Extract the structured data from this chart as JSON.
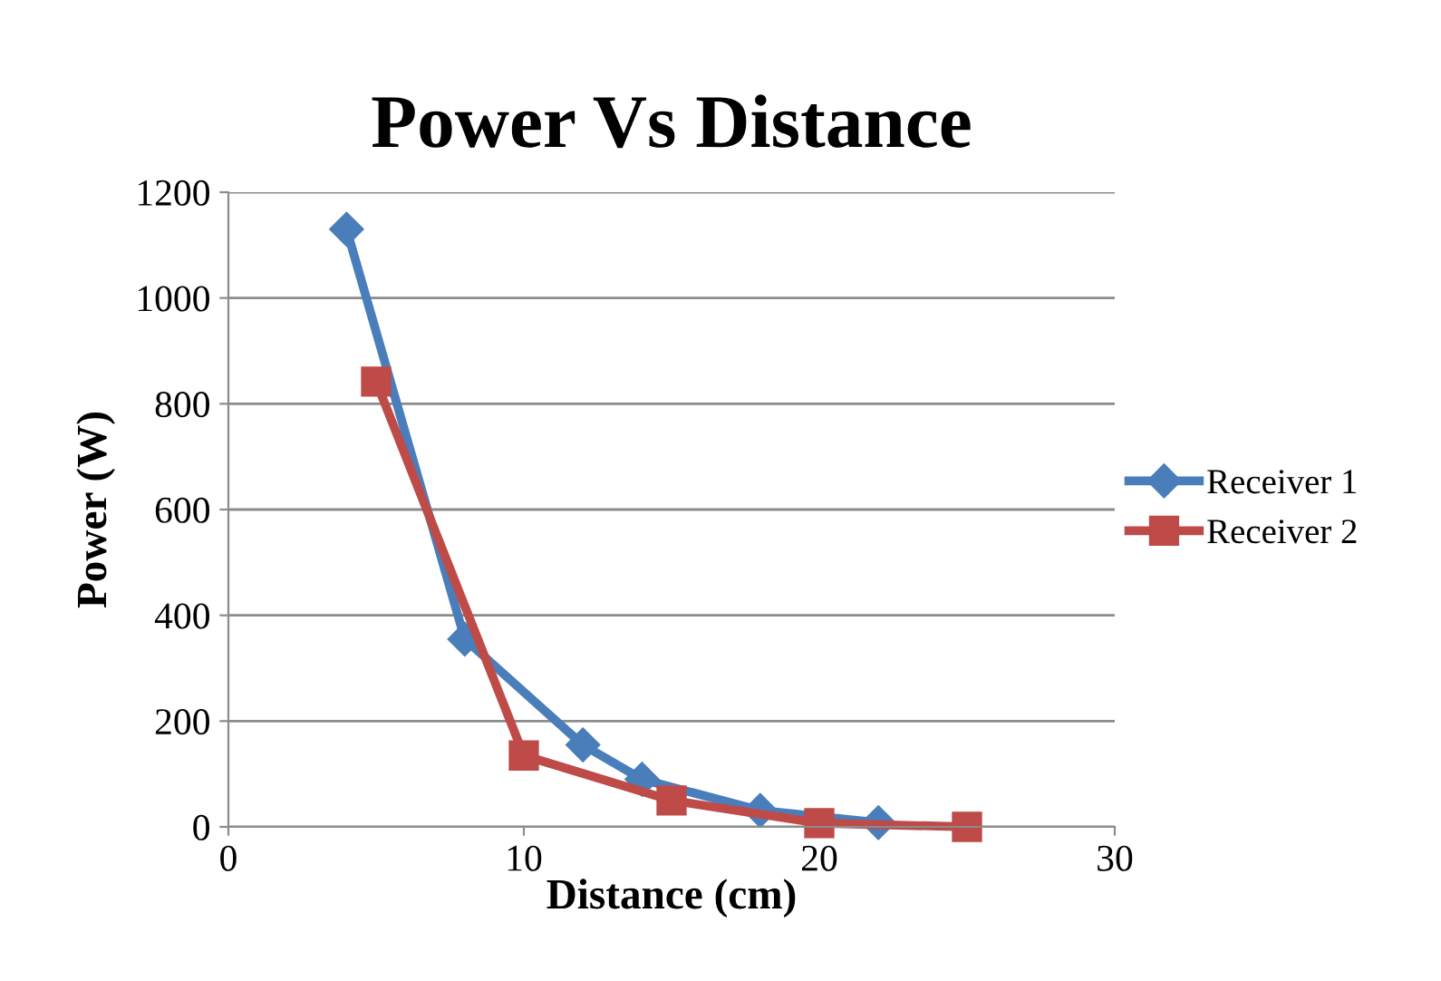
{
  "chart_data": {
    "type": "line",
    "title": "Power Vs Distance",
    "xlabel": "Distance (cm)",
    "ylabel": "Power (W)",
    "xlim": [
      0,
      30
    ],
    "xticks": [
      0,
      10,
      20,
      30
    ],
    "ylim": [
      0,
      1200
    ],
    "yticks": [
      0,
      200,
      400,
      600,
      800,
      1000,
      1200
    ],
    "grid": "y",
    "legend": "right",
    "line_style": "solid",
    "series": [
      {
        "name": "Receiver 1",
        "color": "#4a7ebb",
        "marker": "diamond",
        "x": [
          4,
          8,
          12,
          14,
          18,
          22
        ],
        "values": [
          1130,
          355,
          155,
          90,
          31,
          8
        ]
      },
      {
        "name": "Receiver 2",
        "color": "#be4b48",
        "marker": "square",
        "x": [
          5,
          10,
          15,
          20,
          25
        ],
        "values": [
          842,
          135,
          50,
          7,
          0
        ]
      }
    ]
  }
}
